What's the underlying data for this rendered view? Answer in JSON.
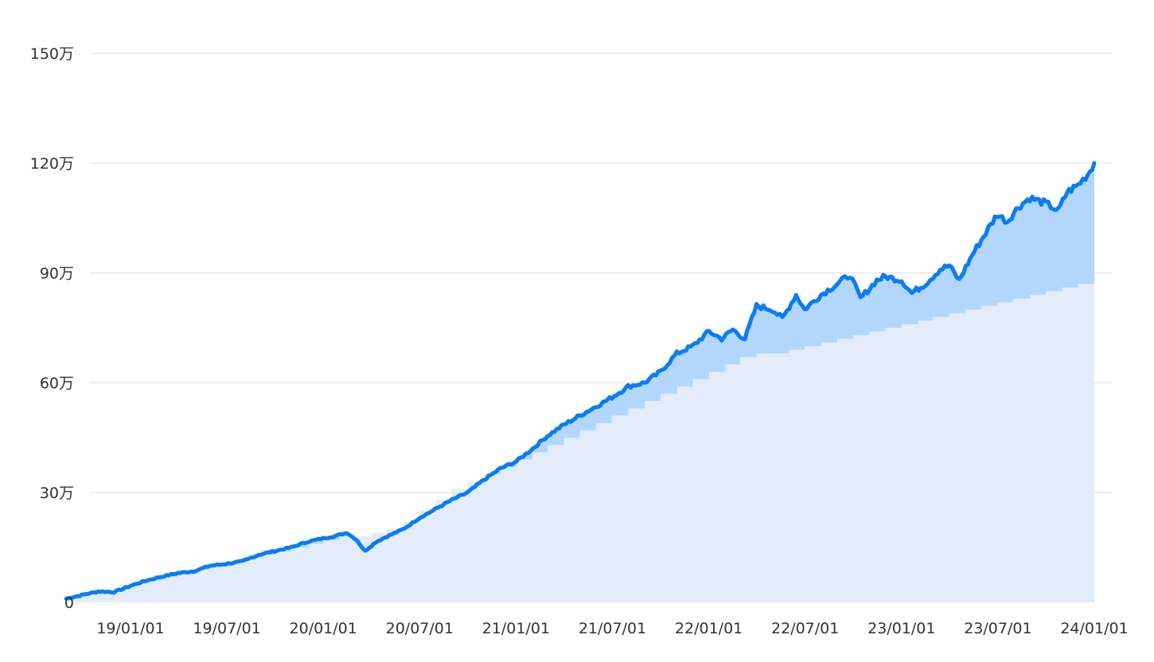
{
  "chart_data": {
    "type": "area",
    "title": "",
    "xlabel": "",
    "ylabel": "",
    "x_tick_labels": [
      "19/01/01",
      "19/07/01",
      "20/01/01",
      "20/07/01",
      "21/01/01",
      "21/07/01",
      "22/01/01",
      "22/07/01",
      "23/01/01",
      "23/07/01",
      "24/01/01"
    ],
    "y_ticks": [
      {
        "value": 0,
        "label": "0"
      },
      {
        "value": 300000,
        "label": "30万"
      },
      {
        "value": 600000,
        "label": "60万"
      },
      {
        "value": 900000,
        "label": "90万"
      },
      {
        "value": 1200000,
        "label": "120万"
      },
      {
        "value": 1500000,
        "label": "150万"
      }
    ],
    "ylim": [
      0,
      1500000
    ],
    "x_range": [
      "2018-09-01",
      "2024-01-01"
    ],
    "grid": true,
    "legend": "none",
    "colors": {
      "line": "#0a7cf5",
      "gain_fill": "#b3d6fc",
      "principal_fill": "#e2ecfa",
      "grid": "#e3e3e3"
    },
    "series": [
      {
        "style": "step-area",
        "color": "#e2ecfa",
        "points": [
          [
            "2018-09-01",
            10000
          ],
          [
            "2018-10-01",
            20000
          ],
          [
            "2018-11-01",
            30000
          ],
          [
            "2018-12-01",
            40000
          ],
          [
            "2019-01-01",
            50000
          ],
          [
            "2019-02-01",
            60000
          ],
          [
            "2019-03-01",
            70000
          ],
          [
            "2019-04-01",
            80000
          ],
          [
            "2019-05-01",
            90000
          ],
          [
            "2019-06-01",
            100000
          ],
          [
            "2019-07-01",
            110000
          ],
          [
            "2019-08-01",
            120000
          ],
          [
            "2019-09-01",
            130000
          ],
          [
            "2019-10-01",
            140000
          ],
          [
            "2019-11-01",
            150000
          ],
          [
            "2019-12-01",
            160000
          ],
          [
            "2020-01-01",
            170000
          ],
          [
            "2020-02-01",
            180000
          ],
          [
            "2020-03-01",
            180000
          ],
          [
            "2020-04-01",
            190000
          ],
          [
            "2020-05-01",
            200000
          ],
          [
            "2020-06-01",
            220000
          ],
          [
            "2020-07-01",
            250000
          ],
          [
            "2020-08-01",
            280000
          ],
          [
            "2020-09-01",
            310000
          ],
          [
            "2020-10-01",
            330000
          ],
          [
            "2020-11-01",
            350000
          ],
          [
            "2020-12-01",
            370000
          ],
          [
            "2021-01-01",
            390000
          ],
          [
            "2021-02-01",
            410000
          ],
          [
            "2021-03-01",
            430000
          ],
          [
            "2021-04-01",
            450000
          ],
          [
            "2021-05-01",
            470000
          ],
          [
            "2021-06-01",
            490000
          ],
          [
            "2021-07-01",
            510000
          ],
          [
            "2021-08-01",
            530000
          ],
          [
            "2021-09-01",
            550000
          ],
          [
            "2021-10-01",
            570000
          ],
          [
            "2021-11-01",
            590000
          ],
          [
            "2021-12-01",
            610000
          ],
          [
            "2022-01-01",
            630000
          ],
          [
            "2022-02-01",
            650000
          ],
          [
            "2022-03-01",
            670000
          ],
          [
            "2022-04-01",
            680000
          ],
          [
            "2022-05-01",
            680000
          ],
          [
            "2022-06-01",
            690000
          ],
          [
            "2022-07-01",
            700000
          ],
          [
            "2022-08-01",
            710000
          ],
          [
            "2022-09-01",
            720000
          ],
          [
            "2022-10-01",
            730000
          ],
          [
            "2022-11-01",
            740000
          ],
          [
            "2022-12-01",
            750000
          ],
          [
            "2023-01-01",
            760000
          ],
          [
            "2023-02-01",
            770000
          ],
          [
            "2023-03-01",
            780000
          ],
          [
            "2023-04-01",
            790000
          ],
          [
            "2023-05-01",
            800000
          ],
          [
            "2023-06-01",
            810000
          ],
          [
            "2023-07-01",
            820000
          ],
          [
            "2023-08-01",
            830000
          ],
          [
            "2023-09-01",
            840000
          ],
          [
            "2023-10-01",
            850000
          ],
          [
            "2023-11-01",
            860000
          ],
          [
            "2023-12-01",
            870000
          ],
          [
            "2024-01-01",
            880000
          ]
        ]
      },
      {
        "style": "line",
        "color": "#0a7cf5",
        "points": [
          [
            "2018-09-01",
            10000
          ],
          [
            "2018-10-01",
            20000
          ],
          [
            "2018-11-01",
            30000
          ],
          [
            "2018-12-01",
            28000
          ],
          [
            "2019-01-01",
            45000
          ],
          [
            "2019-02-01",
            60000
          ],
          [
            "2019-03-01",
            70000
          ],
          [
            "2019-04-01",
            80000
          ],
          [
            "2019-05-01",
            85000
          ],
          [
            "2019-06-01",
            100000
          ],
          [
            "2019-07-01",
            105000
          ],
          [
            "2019-08-01",
            112000
          ],
          [
            "2019-09-01",
            130000
          ],
          [
            "2019-10-01",
            140000
          ],
          [
            "2019-11-01",
            150000
          ],
          [
            "2019-12-01",
            165000
          ],
          [
            "2020-01-01",
            175000
          ],
          [
            "2020-01-20",
            180000
          ],
          [
            "2020-02-15",
            190000
          ],
          [
            "2020-03-05",
            170000
          ],
          [
            "2020-03-20",
            140000
          ],
          [
            "2020-04-10",
            165000
          ],
          [
            "2020-05-01",
            180000
          ],
          [
            "2020-06-01",
            200000
          ],
          [
            "2020-07-01",
            230000
          ],
          [
            "2020-08-01",
            255000
          ],
          [
            "2020-09-01",
            280000
          ],
          [
            "2020-10-01",
            300000
          ],
          [
            "2020-11-01",
            335000
          ],
          [
            "2020-12-01",
            365000
          ],
          [
            "2021-01-01",
            385000
          ],
          [
            "2021-02-01",
            420000
          ],
          [
            "2021-03-01",
            455000
          ],
          [
            "2021-04-01",
            485000
          ],
          [
            "2021-05-01",
            510000
          ],
          [
            "2021-06-01",
            535000
          ],
          [
            "2021-07-01",
            560000
          ],
          [
            "2021-08-01",
            590000
          ],
          [
            "2021-09-01",
            600000
          ],
          [
            "2021-10-01",
            630000
          ],
          [
            "2021-11-01",
            680000
          ],
          [
            "2021-12-01",
            700000
          ],
          [
            "2022-01-01",
            740000
          ],
          [
            "2022-01-25",
            720000
          ],
          [
            "2022-02-15",
            745000
          ],
          [
            "2022-03-10",
            720000
          ],
          [
            "2022-04-01",
            810000
          ],
          [
            "2022-05-01",
            800000
          ],
          [
            "2022-05-20",
            775000
          ],
          [
            "2022-06-15",
            840000
          ],
          [
            "2022-07-01",
            800000
          ],
          [
            "2022-08-01",
            840000
          ],
          [
            "2022-09-01",
            870000
          ],
          [
            "2022-09-25",
            895000
          ],
          [
            "2022-10-15",
            830000
          ],
          [
            "2022-11-15",
            880000
          ],
          [
            "2022-12-01",
            890000
          ],
          [
            "2023-01-01",
            880000
          ],
          [
            "2023-01-20",
            845000
          ],
          [
            "2023-02-15",
            870000
          ],
          [
            "2023-03-15",
            910000
          ],
          [
            "2023-04-01",
            920000
          ],
          [
            "2023-04-20",
            880000
          ],
          [
            "2023-05-15",
            950000
          ],
          [
            "2023-06-01",
            990000
          ],
          [
            "2023-07-01",
            1060000
          ],
          [
            "2023-07-20",
            1040000
          ],
          [
            "2023-08-10",
            1080000
          ],
          [
            "2023-09-01",
            1105000
          ],
          [
            "2023-10-01",
            1090000
          ],
          [
            "2023-10-25",
            1070000
          ],
          [
            "2023-11-10",
            1120000
          ],
          [
            "2023-12-01",
            1140000
          ],
          [
            "2023-12-20",
            1170000
          ],
          [
            "2024-01-01",
            1200000
          ]
        ]
      }
    ]
  }
}
